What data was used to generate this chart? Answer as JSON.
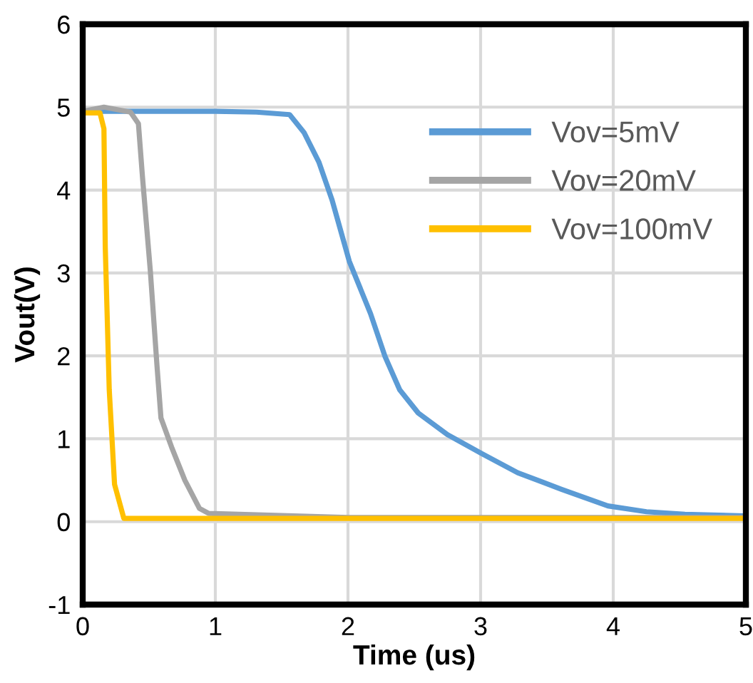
{
  "chart_data": {
    "type": "line",
    "xlabel": "Time (us)",
    "ylabel": "Vout(V)",
    "xlim": [
      0,
      5
    ],
    "ylim": [
      -1,
      6
    ],
    "xticks": [
      0,
      1,
      2,
      3,
      4,
      5
    ],
    "yticks": [
      -1,
      0,
      1,
      2,
      3,
      4,
      5,
      6
    ],
    "grid": true,
    "legend": "top right",
    "marker": "none",
    "line_style": "solid",
    "series": [
      {
        "name": "Vov=5mV",
        "color": "#5b9bd5",
        "x": [
          0,
          0.5,
          1.0,
          1.31,
          1.56,
          1.67,
          1.78,
          1.88,
          2.01,
          2.17,
          2.28,
          2.39,
          2.53,
          2.75,
          3.01,
          3.28,
          3.61,
          3.96,
          4.25,
          4.54,
          4.97
        ],
        "values": [
          4.95,
          4.95,
          4.95,
          4.94,
          4.91,
          4.69,
          4.34,
          3.88,
          3.14,
          2.51,
          1.99,
          1.59,
          1.31,
          1.05,
          0.82,
          0.59,
          0.39,
          0.19,
          0.12,
          0.09,
          0.07
        ]
      },
      {
        "name": "Vov=20mV",
        "color": "#a5a5a5",
        "x": [
          0,
          0.16,
          0.36,
          0.42,
          0.45,
          0.51,
          0.56,
          0.59,
          0.67,
          0.77,
          0.88,
          0.95,
          2.0,
          3.0,
          4.0,
          5.0
        ],
        "values": [
          4.95,
          5.0,
          4.94,
          4.8,
          4.17,
          3.02,
          1.88,
          1.25,
          0.9,
          0.5,
          0.16,
          0.1,
          0.05,
          0.05,
          0.05,
          0.05
        ]
      },
      {
        "name": "Vov=100mV",
        "color": "#ffc000",
        "x": [
          0,
          0.13,
          0.16,
          0.17,
          0.2,
          0.24,
          0.31,
          1.0,
          2.0,
          3.0,
          4.0,
          5.0
        ],
        "values": [
          4.93,
          4.93,
          4.74,
          3.31,
          1.59,
          0.45,
          0.04,
          0.04,
          0.04,
          0.04,
          0.04,
          0.04
        ]
      }
    ]
  }
}
